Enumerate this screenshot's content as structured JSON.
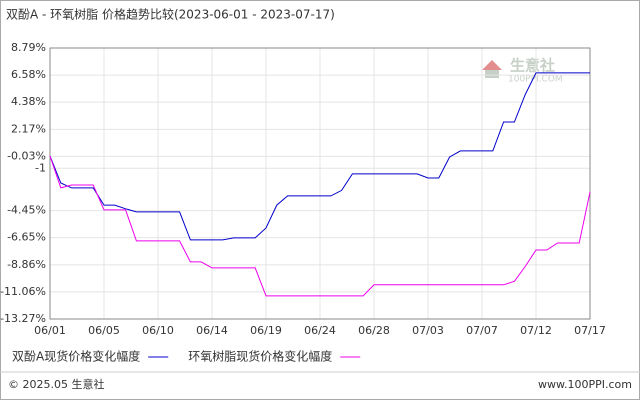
{
  "chart_data": {
    "type": "line",
    "title": "双酚A - 环氧树脂 价格趋势比较(2023-06-01 - 2023-07-17)",
    "categories": [
      "06/01",
      null,
      null,
      null,
      null,
      "06/05",
      null,
      null,
      null,
      null,
      "06/10",
      null,
      null,
      null,
      null,
      "06/14",
      null,
      null,
      null,
      null,
      "06/19",
      null,
      null,
      null,
      null,
      "06/24",
      null,
      null,
      null,
      null,
      "06/28",
      null,
      null,
      null,
      null,
      "07/03",
      null,
      null,
      null,
      null,
      "07/07",
      null,
      null,
      null,
      null,
      "07/12",
      null,
      null,
      null,
      null,
      "07/17"
    ],
    "series": [
      {
        "name": "双酚A现货价格变化幅度",
        "color": "#0000cc",
        "values": [
          0,
          -2.2,
          -2.6,
          -2.6,
          -2.6,
          -4.0,
          -4.0,
          -4.3,
          -4.55,
          -4.55,
          -4.55,
          -4.55,
          -4.55,
          -6.83,
          -6.83,
          -6.83,
          -6.83,
          -6.67,
          -6.67,
          -6.67,
          -5.86,
          -4.0,
          -3.25,
          -3.25,
          -3.25,
          -3.25,
          -3.25,
          -2.8,
          -1.46,
          -1.46,
          -1.46,
          -1.46,
          -1.46,
          -1.46,
          -1.46,
          -1.79,
          -1.79,
          -0.08,
          0.41,
          0.41,
          0.41,
          0.41,
          2.77,
          2.77,
          5.0,
          6.76,
          6.76,
          6.76,
          6.76,
          6.76,
          6.76
        ]
      },
      {
        "name": "环氧树脂现货价格变化幅度",
        "color": "#ee00ee",
        "values": [
          0,
          -2.6,
          -2.36,
          -2.36,
          -2.36,
          -4.39,
          -4.39,
          -4.39,
          -6.91,
          -6.91,
          -6.91,
          -6.91,
          -6.91,
          -8.62,
          -8.62,
          -9.11,
          -9.11,
          -9.11,
          -9.11,
          -9.11,
          -11.39,
          -11.39,
          -11.39,
          -11.39,
          -11.39,
          -11.39,
          -11.39,
          -11.39,
          -11.39,
          -11.39,
          -10.49,
          -10.49,
          -10.49,
          -10.49,
          -10.49,
          -10.49,
          -10.49,
          -10.49,
          -10.49,
          -10.49,
          -10.49,
          -10.49,
          -10.49,
          -10.2,
          -9.0,
          -7.65,
          -7.65,
          -7.08,
          -7.08,
          -7.08,
          -2.93
        ]
      }
    ],
    "ylim": [
      -13.27,
      8.79
    ],
    "yticks": [
      {
        "value": 8.79,
        "label": "8.79%"
      },
      {
        "value": 6.58,
        "label": "6.58%"
      },
      {
        "value": 4.38,
        "label": "4.38%"
      },
      {
        "value": 2.17,
        "label": "2.17%"
      },
      {
        "value": -0.03,
        "label": "-0.03%"
      },
      -1,
      {
        "value": -4.45,
        "label": "-4.45%"
      },
      {
        "value": -6.65,
        "label": "-6.65%"
      },
      {
        "value": -8.86,
        "label": "-8.86%"
      },
      {
        "value": -11.06,
        "label": "-11.06%"
      },
      {
        "value": -13.27,
        "label": "-13.27%"
      }
    ],
    "grid": true,
    "watermark": {
      "name": "生意社",
      "site": "100PPI.COM"
    },
    "footer": {
      "left": "© 2025.05 生意社",
      "right": "www.100PPI.com"
    }
  }
}
